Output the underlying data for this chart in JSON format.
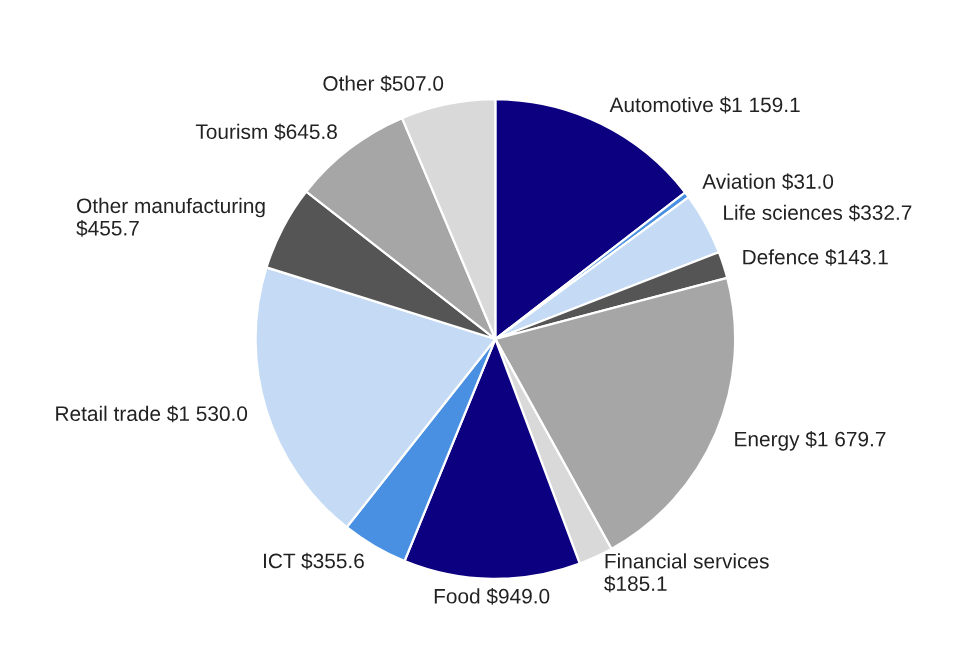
{
  "chart_data": {
    "type": "pie",
    "categories": [
      "Automotive",
      "Aviation",
      "Life sciences",
      "Defence",
      "Energy",
      "Financial services",
      "Food",
      "ICT",
      "Retail trade",
      "Other manufacturing",
      "Tourism",
      "Other"
    ],
    "values": [
      1159.1,
      31.0,
      332.7,
      143.1,
      1679.7,
      185.1,
      949.0,
      355.6,
      1530.0,
      455.7,
      645.8,
      507.0
    ],
    "value_labels": [
      "$1 159.1",
      "$31.0",
      "$332.7",
      "$143.1",
      "$1 679.7",
      "$185.1",
      "$949.0",
      "$355.6",
      "$1 530.0",
      "$455.7",
      "$645.8",
      "$507.0"
    ],
    "colors": [
      "#0d0080",
      "#4a90e2",
      "#c5dbf5",
      "#555555",
      "#a6a6a6",
      "#d9d9d9",
      "#0d0080",
      "#4a90e2",
      "#c5dbf5",
      "#555555",
      "#a6a6a6",
      "#d9d9d9"
    ],
    "legend": false
  }
}
